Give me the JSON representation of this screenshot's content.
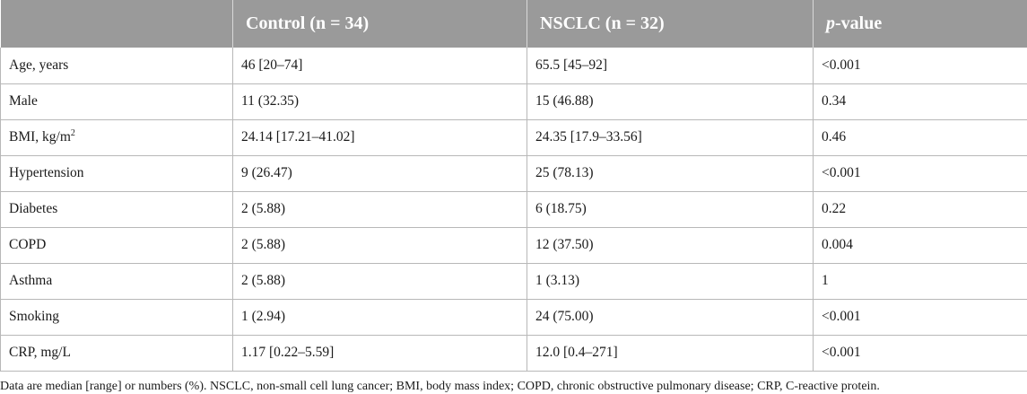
{
  "table": {
    "headers": {
      "col1": "",
      "col2": "Control (n = 34)",
      "col3": "NSCLC (n = 32)",
      "col4_italic": "p",
      "col4_rest": "-value"
    },
    "rows": [
      {
        "label": "Age, years",
        "control": "46 [20–74]",
        "nsclc": "65.5 [45–92]",
        "p": "<0.001"
      },
      {
        "label": "Male",
        "control": "11 (32.35)",
        "nsclc": "15 (46.88)",
        "p": "0.34"
      },
      {
        "label_main": "BMI, kg/m",
        "label_sup": "2",
        "control": "24.14 [17.21–41.02]",
        "nsclc": "24.35 [17.9–33.56]",
        "p": "0.46"
      },
      {
        "label": "Hypertension",
        "control": "9 (26.47)",
        "nsclc": "25 (78.13)",
        "p": "<0.001"
      },
      {
        "label": "Diabetes",
        "control": "2 (5.88)",
        "nsclc": "6 (18.75)",
        "p": "0.22"
      },
      {
        "label": "COPD",
        "control": "2 (5.88)",
        "nsclc": "12 (37.50)",
        "p": "0.004"
      },
      {
        "label": "Asthma",
        "control": "2 (5.88)",
        "nsclc": "1 (3.13)",
        "p": "1"
      },
      {
        "label": "Smoking",
        "control": "1 (2.94)",
        "nsclc": "24 (75.00)",
        "p": "<0.001"
      },
      {
        "label": "CRP, mg/L",
        "control": "1.17 [0.22–5.59]",
        "nsclc": "12.0 [0.4–271]",
        "p": "<0.001"
      }
    ]
  },
  "footnote": "Data are median [range] or numbers (%). NSCLC, non-small cell lung cancer; BMI, body mass index; COPD, chronic obstructive pulmonary disease; CRP, C-reactive protein.",
  "colors": {
    "header_bg": "#9a9a9a",
    "header_text": "#ffffff",
    "grid": "#b8b8b8"
  }
}
